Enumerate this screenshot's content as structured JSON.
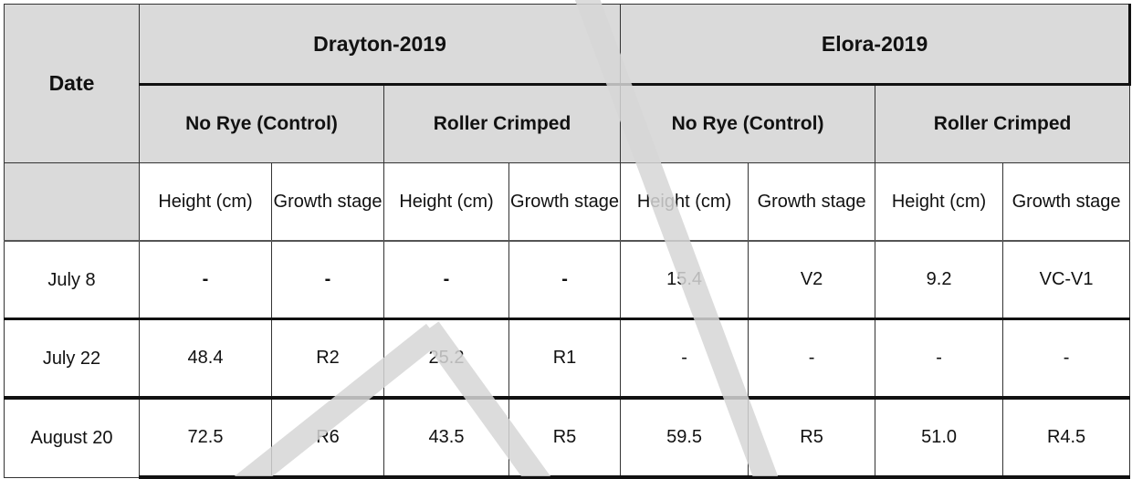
{
  "table": {
    "date_header": "Date",
    "sites": [
      "Drayton-2019",
      "Elora-2019"
    ],
    "treatments": [
      "No Rye (Control)",
      "Roller Crimped",
      "No Rye (Control)",
      "Roller Crimped"
    ],
    "subheaders": [
      "Height (cm)",
      "Growth stage",
      "Height (cm)",
      "Growth stage",
      "Height (cm)",
      "Growth stage",
      "Height (cm)",
      "Growth stage"
    ],
    "rows": [
      {
        "date": "July 8",
        "cells": [
          "-",
          "-",
          "-",
          "-",
          "15.4",
          "V2",
          "9.2",
          "VC-V1"
        ]
      },
      {
        "date": "July 22",
        "cells": [
          "48.4",
          "R2",
          "25.2",
          "R1",
          "-",
          "-",
          "-",
          "-"
        ]
      },
      {
        "date": "August 20",
        "cells": [
          "72.5",
          "R6",
          "43.5",
          "R5",
          "59.5",
          "R5",
          "51.0",
          "R4.5"
        ]
      }
    ]
  },
  "colors": {
    "header_bg": "#dadada",
    "watermark": "#d6d6d6"
  }
}
